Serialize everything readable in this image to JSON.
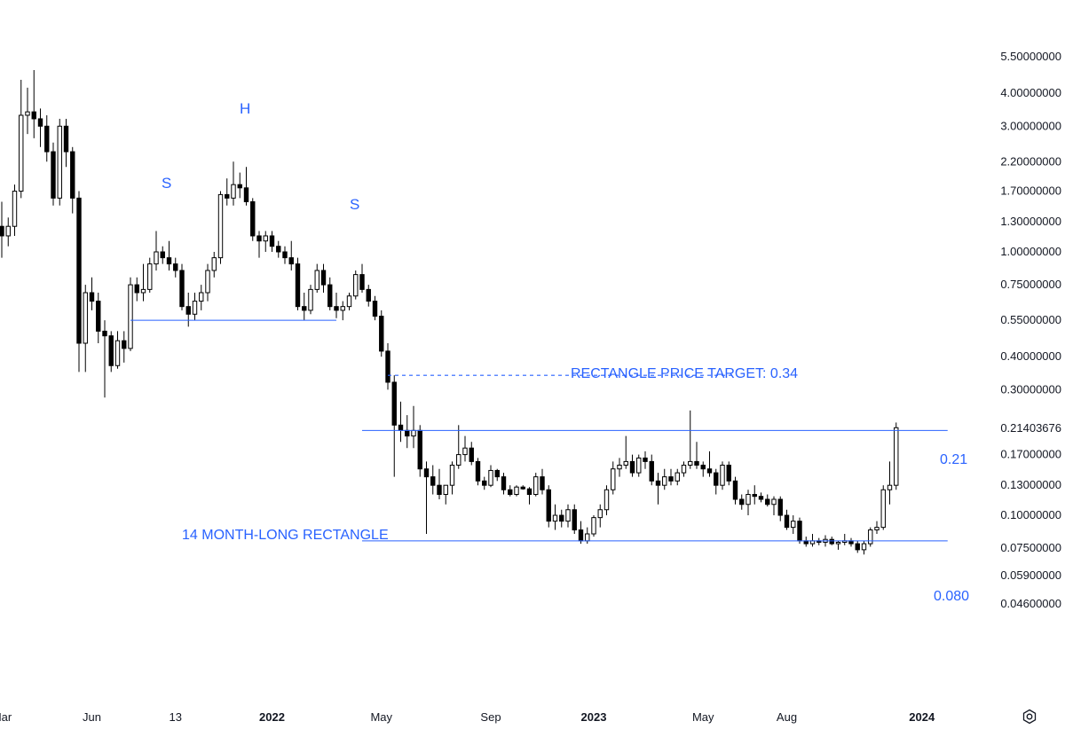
{
  "colors": {
    "up_candle": "#ffffff",
    "down_candle": "#000000",
    "outline": "#000000",
    "drawing": "#2962ff",
    "text": "#131722"
  },
  "chart_data": {
    "type": "candlestick",
    "scale": "log",
    "ylim": [
      0.04,
      6.0
    ],
    "y_ticks": [
      "5.50000000",
      "4.00000000",
      "3.00000000",
      "2.20000000",
      "1.70000000",
      "1.30000000",
      "1.00000000",
      "0.75000000",
      "0.55000000",
      "0.40000000",
      "0.30000000",
      "0.21403676",
      "0.17000000",
      "0.13000000",
      "0.10000000",
      "0.07500000",
      "0.05900000",
      "0.04600000"
    ],
    "x_ticks": [
      {
        "label": "Mar",
        "bold": false,
        "week": 0
      },
      {
        "label": "Jun",
        "bold": false,
        "week": 14
      },
      {
        "label": "13",
        "bold": false,
        "week": 27
      },
      {
        "label": "2022",
        "bold": true,
        "week": 42
      },
      {
        "label": "May",
        "bold": false,
        "week": 59
      },
      {
        "label": "Sep",
        "bold": false,
        "week": 76
      },
      {
        "label": "2023",
        "bold": true,
        "week": 92
      },
      {
        "label": "May",
        "bold": false,
        "week": 109
      },
      {
        "label": "Aug",
        "bold": false,
        "week": 122
      },
      {
        "label": "2024",
        "bold": true,
        "week": 143
      }
    ],
    "ohlc_note": "weekly candles, values estimated from the price axis",
    "candles": [
      [
        1.25,
        1.55,
        0.95,
        1.15
      ],
      [
        1.15,
        1.35,
        1.05,
        1.25
      ],
      [
        1.25,
        1.8,
        1.15,
        1.7
      ],
      [
        1.7,
        4.5,
        1.6,
        3.3
      ],
      [
        3.3,
        4.2,
        2.8,
        3.4
      ],
      [
        3.4,
        4.9,
        2.7,
        3.2
      ],
      [
        3.2,
        3.5,
        2.5,
        3.0
      ],
      [
        3.0,
        3.3,
        2.2,
        2.4
      ],
      [
        2.4,
        2.6,
        1.5,
        1.6
      ],
      [
        1.6,
        3.2,
        1.5,
        3.0
      ],
      [
        3.0,
        3.2,
        2.1,
        2.4
      ],
      [
        2.4,
        2.5,
        1.4,
        1.6
      ],
      [
        1.6,
        1.7,
        0.35,
        0.45
      ],
      [
        0.45,
        0.75,
        0.35,
        0.7
      ],
      [
        0.7,
        0.8,
        0.6,
        0.65
      ],
      [
        0.65,
        0.7,
        0.45,
        0.5
      ],
      [
        0.5,
        0.55,
        0.28,
        0.48
      ],
      [
        0.48,
        0.5,
        0.35,
        0.37
      ],
      [
        0.37,
        0.5,
        0.36,
        0.46
      ],
      [
        0.46,
        0.5,
        0.38,
        0.43
      ],
      [
        0.43,
        0.8,
        0.42,
        0.75
      ],
      [
        0.75,
        0.8,
        0.65,
        0.7
      ],
      [
        0.7,
        0.9,
        0.65,
        0.72
      ],
      [
        0.72,
        0.95,
        0.7,
        0.9
      ],
      [
        0.9,
        1.2,
        0.85,
        1.0
      ],
      [
        1.0,
        1.05,
        0.9,
        0.95
      ],
      [
        0.95,
        1.1,
        0.85,
        0.9
      ],
      [
        0.9,
        0.95,
        0.8,
        0.85
      ],
      [
        0.85,
        0.9,
        0.6,
        0.62
      ],
      [
        0.62,
        0.7,
        0.52,
        0.58
      ],
      [
        0.58,
        0.7,
        0.55,
        0.65
      ],
      [
        0.65,
        0.75,
        0.6,
        0.7
      ],
      [
        0.7,
        0.9,
        0.65,
        0.85
      ],
      [
        0.85,
        1.0,
        0.8,
        0.95
      ],
      [
        0.95,
        1.7,
        0.9,
        1.65
      ],
      [
        1.65,
        1.9,
        1.5,
        1.6
      ],
      [
        1.6,
        2.2,
        1.5,
        1.8
      ],
      [
        1.8,
        2.0,
        1.6,
        1.75
      ],
      [
        1.75,
        2.1,
        1.5,
        1.55
      ],
      [
        1.55,
        1.6,
        1.1,
        1.15
      ],
      [
        1.15,
        1.2,
        0.95,
        1.1
      ],
      [
        1.1,
        1.2,
        1.0,
        1.15
      ],
      [
        1.15,
        1.2,
        1.0,
        1.05
      ],
      [
        1.05,
        1.1,
        0.95,
        1.0
      ],
      [
        1.0,
        1.05,
        0.9,
        0.95
      ],
      [
        0.95,
        1.1,
        0.85,
        0.9
      ],
      [
        0.9,
        0.95,
        0.6,
        0.62
      ],
      [
        0.62,
        0.7,
        0.55,
        0.6
      ],
      [
        0.6,
        0.75,
        0.58,
        0.72
      ],
      [
        0.72,
        0.9,
        0.7,
        0.85
      ],
      [
        0.85,
        0.9,
        0.7,
        0.75
      ],
      [
        0.75,
        0.8,
        0.6,
        0.62
      ],
      [
        0.62,
        0.7,
        0.56,
        0.6
      ],
      [
        0.6,
        0.65,
        0.55,
        0.62
      ],
      [
        0.62,
        0.7,
        0.6,
        0.68
      ],
      [
        0.68,
        0.85,
        0.66,
        0.82
      ],
      [
        0.82,
        0.9,
        0.7,
        0.72
      ],
      [
        0.72,
        0.75,
        0.62,
        0.65
      ],
      [
        0.65,
        0.68,
        0.55,
        0.57
      ],
      [
        0.57,
        0.6,
        0.4,
        0.42
      ],
      [
        0.42,
        0.45,
        0.3,
        0.32
      ],
      [
        0.32,
        0.34,
        0.14,
        0.22
      ],
      [
        0.22,
        0.27,
        0.19,
        0.21
      ],
      [
        0.21,
        0.24,
        0.18,
        0.2
      ],
      [
        0.2,
        0.26,
        0.18,
        0.21
      ],
      [
        0.21,
        0.22,
        0.14,
        0.15
      ],
      [
        0.15,
        0.16,
        0.085,
        0.14
      ],
      [
        0.14,
        0.155,
        0.12,
        0.13
      ],
      [
        0.13,
        0.15,
        0.115,
        0.12
      ],
      [
        0.12,
        0.13,
        0.11,
        0.13
      ],
      [
        0.13,
        0.16,
        0.12,
        0.155
      ],
      [
        0.155,
        0.22,
        0.15,
        0.17
      ],
      [
        0.17,
        0.2,
        0.16,
        0.18
      ],
      [
        0.18,
        0.19,
        0.155,
        0.16
      ],
      [
        0.16,
        0.165,
        0.13,
        0.135
      ],
      [
        0.135,
        0.14,
        0.125,
        0.13
      ],
      [
        0.13,
        0.155,
        0.128,
        0.148
      ],
      [
        0.148,
        0.15,
        0.135,
        0.14
      ],
      [
        0.14,
        0.145,
        0.12,
        0.125
      ],
      [
        0.125,
        0.13,
        0.118,
        0.12
      ],
      [
        0.12,
        0.13,
        0.118,
        0.128
      ],
      [
        0.128,
        0.13,
        0.125,
        0.126
      ],
      [
        0.126,
        0.128,
        0.11,
        0.12
      ],
      [
        0.12,
        0.145,
        0.118,
        0.14
      ],
      [
        0.14,
        0.15,
        0.12,
        0.125
      ],
      [
        0.125,
        0.13,
        0.09,
        0.095
      ],
      [
        0.095,
        0.11,
        0.088,
        0.1
      ],
      [
        0.1,
        0.105,
        0.09,
        0.095
      ],
      [
        0.095,
        0.11,
        0.09,
        0.105
      ],
      [
        0.105,
        0.11,
        0.085,
        0.088
      ],
      [
        0.088,
        0.095,
        0.078,
        0.08
      ],
      [
        0.08,
        0.09,
        0.078,
        0.085
      ],
      [
        0.085,
        0.1,
        0.083,
        0.098
      ],
      [
        0.098,
        0.11,
        0.09,
        0.105
      ],
      [
        0.105,
        0.13,
        0.1,
        0.125
      ],
      [
        0.125,
        0.16,
        0.12,
        0.15
      ],
      [
        0.15,
        0.165,
        0.14,
        0.155
      ],
      [
        0.155,
        0.2,
        0.15,
        0.16
      ],
      [
        0.16,
        0.17,
        0.14,
        0.145
      ],
      [
        0.145,
        0.17,
        0.14,
        0.165
      ],
      [
        0.165,
        0.175,
        0.15,
        0.16
      ],
      [
        0.16,
        0.17,
        0.13,
        0.135
      ],
      [
        0.135,
        0.145,
        0.11,
        0.13
      ],
      [
        0.13,
        0.15,
        0.125,
        0.14
      ],
      [
        0.14,
        0.15,
        0.13,
        0.135
      ],
      [
        0.135,
        0.15,
        0.13,
        0.145
      ],
      [
        0.145,
        0.16,
        0.14,
        0.155
      ],
      [
        0.155,
        0.25,
        0.15,
        0.16
      ],
      [
        0.16,
        0.19,
        0.15,
        0.155
      ],
      [
        0.155,
        0.16,
        0.14,
        0.15
      ],
      [
        0.15,
        0.175,
        0.14,
        0.145
      ],
      [
        0.145,
        0.15,
        0.12,
        0.13
      ],
      [
        0.13,
        0.16,
        0.125,
        0.155
      ],
      [
        0.155,
        0.16,
        0.13,
        0.135
      ],
      [
        0.135,
        0.14,
        0.11,
        0.115
      ],
      [
        0.115,
        0.12,
        0.105,
        0.11
      ],
      [
        0.11,
        0.125,
        0.1,
        0.12
      ],
      [
        0.12,
        0.13,
        0.11,
        0.118
      ],
      [
        0.118,
        0.122,
        0.112,
        0.115
      ],
      [
        0.115,
        0.12,
        0.108,
        0.11
      ],
      [
        0.11,
        0.118,
        0.1,
        0.115
      ],
      [
        0.115,
        0.118,
        0.095,
        0.1
      ],
      [
        0.1,
        0.105,
        0.088,
        0.09
      ],
      [
        0.09,
        0.1,
        0.085,
        0.095
      ],
      [
        0.095,
        0.098,
        0.078,
        0.08
      ],
      [
        0.08,
        0.083,
        0.076,
        0.078
      ],
      [
        0.078,
        0.085,
        0.076,
        0.08
      ],
      [
        0.08,
        0.082,
        0.077,
        0.079
      ],
      [
        0.079,
        0.084,
        0.076,
        0.081
      ],
      [
        0.081,
        0.083,
        0.077,
        0.078
      ],
      [
        0.078,
        0.08,
        0.074,
        0.079
      ],
      [
        0.079,
        0.085,
        0.077,
        0.08
      ],
      [
        0.08,
        0.082,
        0.076,
        0.078
      ],
      [
        0.078,
        0.08,
        0.072,
        0.074
      ],
      [
        0.074,
        0.08,
        0.071,
        0.078
      ],
      [
        0.078,
        0.09,
        0.076,
        0.088
      ],
      [
        0.088,
        0.095,
        0.085,
        0.09
      ],
      [
        0.09,
        0.13,
        0.088,
        0.125
      ],
      [
        0.125,
        0.16,
        0.11,
        0.13
      ],
      [
        0.13,
        0.225,
        0.125,
        0.215
      ]
    ]
  },
  "drawings": {
    "neckline": {
      "value": 0.55,
      "from_week": 20,
      "to_week": 52
    },
    "rect_top": {
      "value": 0.21,
      "from_week": 56,
      "to_week": 147
    },
    "rect_bottom": {
      "value": 0.08,
      "from_week": 56,
      "to_week": 147
    },
    "target_line": {
      "value": 0.34,
      "from_week": 60,
      "to_week": 114
    },
    "last_price": "0.21403676"
  },
  "annotations": {
    "left_shoulder": "S",
    "head": "H",
    "right_shoulder": "S",
    "target_text": "RECTANGLE PRICE TARGET: 0.34",
    "rectangle_text": "14 MONTH-LONG RECTANGLE",
    "top_value": "0.21",
    "bottom_value": "0.080"
  },
  "ui": {
    "settings_icon": "gear-icon"
  }
}
